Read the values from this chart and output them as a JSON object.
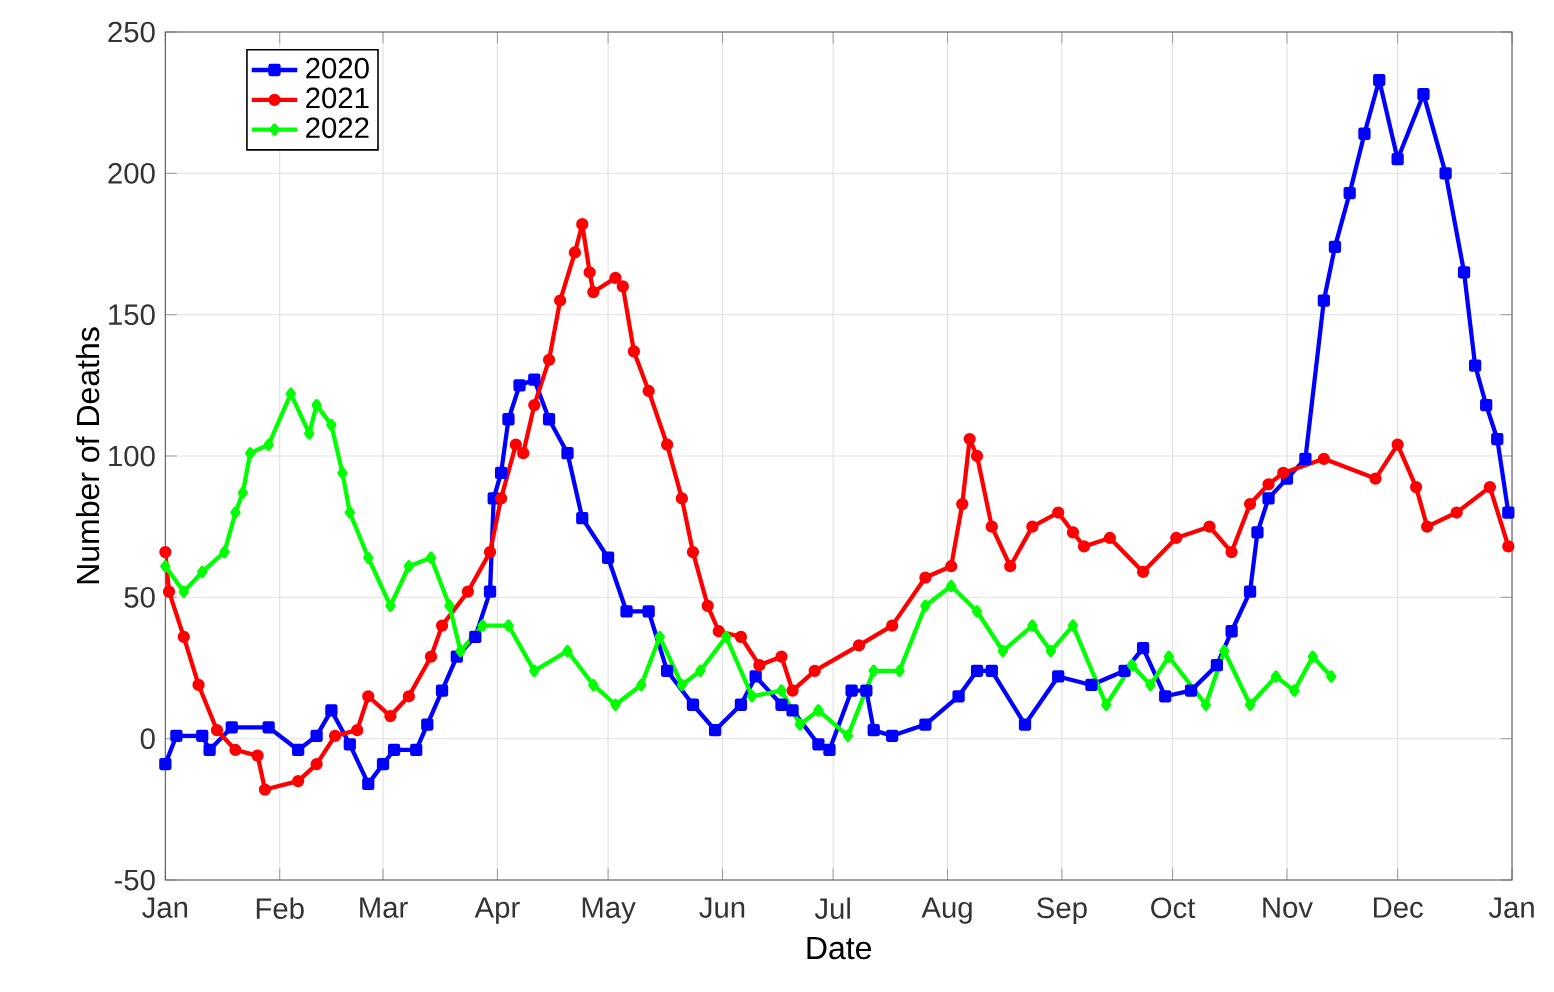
{
  "chart_data": {
    "type": "line",
    "xlabel": "Date",
    "ylabel": "Number of Deaths",
    "xlim": [
      "2021-01-01",
      "2022-01-01"
    ],
    "ylim": [
      -50,
      250
    ],
    "xticks": [
      {
        "value": "2021-01-01",
        "label": "Jan"
      },
      {
        "value": "2021-02-01",
        "label": "Feb"
      },
      {
        "value": "2021-03-01",
        "label": "Mar"
      },
      {
        "value": "2021-04-01",
        "label": "Apr"
      },
      {
        "value": "2021-05-01",
        "label": "May"
      },
      {
        "value": "2021-06-01",
        "label": "Jun"
      },
      {
        "value": "2021-07-01",
        "label": "Jul"
      },
      {
        "value": "2021-08-01",
        "label": "Aug"
      },
      {
        "value": "2021-09-01",
        "label": "Sep"
      },
      {
        "value": "2021-10-01",
        "label": "Oct"
      },
      {
        "value": "2021-11-01",
        "label": "Nov"
      },
      {
        "value": "2021-12-01",
        "label": "Dec"
      },
      {
        "value": "2022-01-01",
        "label": "Jan"
      }
    ],
    "yticks": [
      -50,
      0,
      50,
      100,
      150,
      200,
      250
    ],
    "grid": true,
    "legend": "top left",
    "line_style": "solid",
    "series": [
      {
        "name": "2020",
        "color": "#0000ff",
        "marker": "square",
        "x": [
          "2021-01-01",
          "2021-01-04",
          "2021-01-11",
          "2021-01-13",
          "2021-01-19",
          "2021-01-29",
          "2021-02-06",
          "2021-02-11",
          "2021-02-15",
          "2021-02-20",
          "2021-02-25",
          "2021-03-01",
          "2021-03-04",
          "2021-03-10",
          "2021-03-13",
          "2021-03-17",
          "2021-03-21",
          "2021-03-26",
          "2021-03-30",
          "2021-03-31",
          "2021-04-02",
          "2021-04-04",
          "2021-04-07",
          "2021-04-11",
          "2021-04-15",
          "2021-04-20",
          "2021-04-24",
          "2021-05-01",
          "2021-05-06",
          "2021-05-12",
          "2021-05-17",
          "2021-05-24",
          "2021-05-30",
          "2021-06-06",
          "2021-06-10",
          "2021-06-17",
          "2021-06-20",
          "2021-06-27",
          "2021-06-30",
          "2021-07-06",
          "2021-07-10",
          "2021-07-12",
          "2021-07-17",
          "2021-07-26",
          "2021-08-04",
          "2021-08-09",
          "2021-08-13",
          "2021-08-22",
          "2021-08-31",
          "2021-09-09",
          "2021-09-18",
          "2021-09-23",
          "2021-09-29",
          "2021-10-06",
          "2021-10-13",
          "2021-10-17",
          "2021-10-22",
          "2021-10-24",
          "2021-10-27",
          "2021-11-01",
          "2021-11-06",
          "2021-11-11",
          "2021-11-14",
          "2021-11-18",
          "2021-11-22",
          "2021-11-26",
          "2021-12-01",
          "2021-12-08",
          "2021-12-14",
          "2021-12-19",
          "2021-12-22",
          "2021-12-25",
          "2021-12-28",
          "2021-12-31"
        ],
        "values": [
          -9,
          1,
          1,
          -4,
          4,
          4,
          -4,
          1,
          10,
          -2,
          -16,
          -9,
          -4,
          -4,
          5,
          17,
          29,
          36,
          52,
          85,
          94,
          113,
          125,
          127,
          113,
          101,
          78,
          64,
          45,
          45,
          24,
          12,
          3,
          12,
          22,
          12,
          10,
          -2,
          -4,
          17,
          17,
          3,
          1,
          5,
          15,
          24,
          24,
          5,
          22,
          19,
          24,
          32,
          15,
          17,
          26,
          38,
          52,
          73,
          85,
          92,
          99,
          155,
          174,
          193,
          214,
          233,
          205,
          228,
          200,
          165,
          132,
          118,
          106,
          80
        ]
      },
      {
        "name": "2021",
        "color": "#ff0000",
        "marker": "circle",
        "x": [
          "2021-01-01",
          "2021-01-02",
          "2021-01-06",
          "2021-01-10",
          "2021-01-15",
          "2021-01-20",
          "2021-01-26",
          "2021-01-28",
          "2021-02-06",
          "2021-02-11",
          "2021-02-16",
          "2021-02-22",
          "2021-02-25",
          "2021-03-03",
          "2021-03-08",
          "2021-03-14",
          "2021-03-17",
          "2021-03-24",
          "2021-03-30",
          "2021-04-02",
          "2021-04-06",
          "2021-04-08",
          "2021-04-11",
          "2021-04-15",
          "2021-04-18",
          "2021-04-22",
          "2021-04-24",
          "2021-04-26",
          "2021-04-27",
          "2021-05-03",
          "2021-05-05",
          "2021-05-08",
          "2021-05-12",
          "2021-05-17",
          "2021-05-21",
          "2021-05-24",
          "2021-05-28",
          "2021-05-31",
          "2021-06-06",
          "2021-06-11",
          "2021-06-17",
          "2021-06-20",
          "2021-06-26",
          "2021-07-08",
          "2021-07-17",
          "2021-07-26",
          "2021-08-02",
          "2021-08-05",
          "2021-08-07",
          "2021-08-09",
          "2021-08-13",
          "2021-08-18",
          "2021-08-24",
          "2021-08-31",
          "2021-09-04",
          "2021-09-07",
          "2021-09-14",
          "2021-09-23",
          "2021-10-02",
          "2021-10-11",
          "2021-10-17",
          "2021-10-22",
          "2021-10-27",
          "2021-10-31",
          "2021-11-11",
          "2021-11-25",
          "2021-12-01",
          "2021-12-06",
          "2021-12-09",
          "2021-12-17",
          "2021-12-26",
          "2021-12-31"
        ],
        "values": [
          66,
          52,
          36,
          19,
          3,
          -4,
          -6,
          -18,
          -15,
          -9,
          1,
          3,
          15,
          8,
          15,
          29,
          40,
          52,
          66,
          85,
          104,
          101,
          118,
          134,
          155,
          172,
          182,
          165,
          158,
          163,
          160,
          137,
          123,
          104,
          85,
          66,
          47,
          38,
          36,
          26,
          29,
          17,
          24,
          33,
          40,
          57,
          61,
          83,
          106,
          100,
          75,
          61,
          75,
          80,
          73,
          68,
          71,
          59,
          71,
          75,
          66,
          83,
          90,
          94,
          99,
          92,
          104,
          89,
          75,
          80,
          89,
          68
        ]
      },
      {
        "name": "2022",
        "color": "#00ff00",
        "marker": "diamond",
        "x": [
          "2021-01-01",
          "2021-01-06",
          "2021-01-11",
          "2021-01-17",
          "2021-01-20",
          "2021-01-22",
          "2021-01-24",
          "2021-01-29",
          "2021-02-04",
          "2021-02-09",
          "2021-02-11",
          "2021-02-15",
          "2021-02-18",
          "2021-02-20",
          "2021-02-25",
          "2021-03-03",
          "2021-03-08",
          "2021-03-14",
          "2021-03-19",
          "2021-03-22",
          "2021-03-28",
          "2021-04-04",
          "2021-04-11",
          "2021-04-20",
          "2021-04-27",
          "2021-05-03",
          "2021-05-10",
          "2021-05-15",
          "2021-05-21",
          "2021-05-26",
          "2021-06-02",
          "2021-06-09",
          "2021-06-17",
          "2021-06-22",
          "2021-06-27",
          "2021-07-05",
          "2021-07-12",
          "2021-07-19",
          "2021-07-26",
          "2021-08-02",
          "2021-08-09",
          "2021-08-16",
          "2021-08-24",
          "2021-08-29",
          "2021-09-04",
          "2021-09-13",
          "2021-09-20",
          "2021-09-25",
          "2021-09-30",
          "2021-10-10",
          "2021-10-15",
          "2021-10-22",
          "2021-10-29",
          "2021-11-03",
          "2021-11-08",
          "2021-11-13"
        ],
        "values": [
          61,
          52,
          59,
          66,
          80,
          87,
          101,
          104,
          122,
          108,
          118,
          111,
          94,
          80,
          64,
          47,
          61,
          64,
          47,
          31,
          40,
          40,
          24,
          31,
          19,
          12,
          19,
          36,
          19,
          24,
          36,
          15,
          17,
          5,
          10,
          1,
          24,
          24,
          47,
          54,
          45,
          31,
          40,
          31,
          40,
          12,
          26,
          19,
          29,
          12,
          31,
          12,
          22,
          17,
          29,
          22
        ]
      }
    ]
  }
}
